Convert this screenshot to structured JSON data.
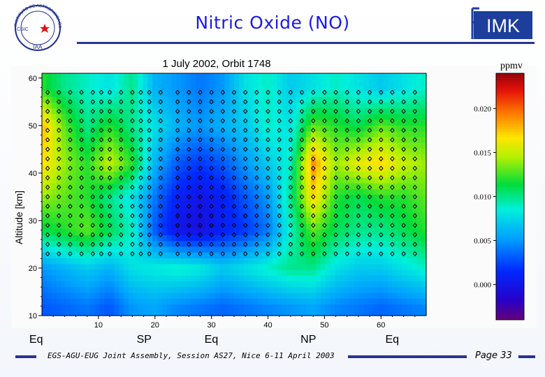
{
  "slide": {
    "title": "Nitric Oxide (NO)",
    "footer": "EGS-AGU-EUG Joint Assembly, Session AS27, Nice 6-11 April 2003",
    "page": "Page 33",
    "imk_logo_text": "IMK",
    "iaa_logo_lines": [
      "INSTITUTO DE ASTROFISICA DE ANDALUCIA",
      "CSIC",
      "IAA"
    ]
  },
  "chart_data": {
    "type": "heatmap",
    "title": "1 July 2002, Orbit 1748",
    "xlabel": "",
    "ylabel": "Altitude [km]",
    "xlim": [
      0,
      68
    ],
    "ylim": [
      10,
      61
    ],
    "xticks": [
      10,
      20,
      30,
      40,
      50,
      60
    ],
    "yticks": [
      10,
      20,
      30,
      40,
      50,
      60
    ],
    "colorbar": {
      "label": "ppmv",
      "range": [
        -0.004,
        0.024
      ],
      "ticks": [
        "0.000",
        "0.005",
        "0.010",
        "0.015",
        "0.020"
      ],
      "tick_values": [
        0.0,
        0.005,
        0.01,
        0.015,
        0.02
      ]
    },
    "region_labels": [
      {
        "label": "Eq",
        "x": -1
      },
      {
        "label": "SP",
        "x": 18
      },
      {
        "label": "Eq",
        "x": 30
      },
      {
        "label": "NP",
        "x": 47
      },
      {
        "label": "Eq",
        "x": 62
      }
    ],
    "retrieval_points": {
      "profile_x": [
        1,
        3,
        5,
        7,
        9,
        10.5,
        12,
        14,
        16,
        17.5,
        19,
        21,
        24,
        26,
        28,
        30,
        32,
        34,
        36,
        38,
        40,
        42,
        44,
        46,
        48,
        50,
        52,
        54,
        56,
        58,
        60,
        62,
        64,
        66
      ],
      "altitudes": [
        23,
        25,
        27,
        29,
        31,
        33,
        35,
        37,
        39,
        41,
        43,
        45,
        47,
        49,
        51,
        53,
        55,
        57
      ]
    },
    "field": {
      "x_nodes": [
        0,
        4,
        8,
        12,
        16,
        20,
        24,
        28,
        32,
        36,
        40,
        44,
        48,
        52,
        56,
        60,
        64,
        68
      ],
      "alt_nodes": [
        12,
        20,
        28,
        35,
        42,
        50,
        58
      ],
      "values": [
        [
          0.003,
          0.0035,
          0.004,
          0.003,
          0.005,
          0.0055,
          0.0045,
          0.004,
          0.0035,
          0.004,
          0.0045,
          0.005,
          0.0055,
          0.0045,
          0.004,
          0.0035,
          0.004,
          0.0045
        ],
        [
          0.005,
          0.006,
          0.007,
          0.006,
          0.008,
          0.0085,
          0.009,
          0.0085,
          0.007,
          0.008,
          0.009,
          0.01,
          0.01,
          0.008,
          0.007,
          0.007,
          0.008,
          0.009
        ],
        [
          0.011,
          0.012,
          0.013,
          0.011,
          0.009,
          0.003,
          0.0,
          -0.0005,
          0.001,
          0.002,
          0.004,
          0.009,
          0.013,
          0.011,
          0.01,
          0.01,
          0.011,
          0.012
        ],
        [
          0.014,
          0.013,
          0.012,
          0.01,
          0.008,
          0.004,
          0.001,
          0.0,
          0.001,
          0.003,
          0.005,
          0.01,
          0.017,
          0.012,
          0.011,
          0.012,
          0.012,
          0.013
        ],
        [
          0.017,
          0.014,
          0.012,
          0.015,
          0.012,
          0.006,
          0.003,
          0.002,
          0.003,
          0.005,
          0.007,
          0.009,
          0.019,
          0.014,
          0.016,
          0.017,
          0.015,
          0.014
        ],
        [
          0.018,
          0.013,
          0.01,
          0.012,
          0.01,
          0.008,
          0.006,
          0.005,
          0.006,
          0.007,
          0.009,
          0.008,
          0.013,
          0.012,
          0.011,
          0.013,
          0.012,
          0.012
        ],
        [
          0.012,
          0.01,
          0.009,
          0.008,
          0.01,
          0.006,
          0.005,
          0.004,
          0.005,
          0.008,
          0.009,
          0.007,
          0.008,
          0.009,
          0.008,
          0.007,
          0.008,
          0.009
        ]
      ]
    }
  }
}
